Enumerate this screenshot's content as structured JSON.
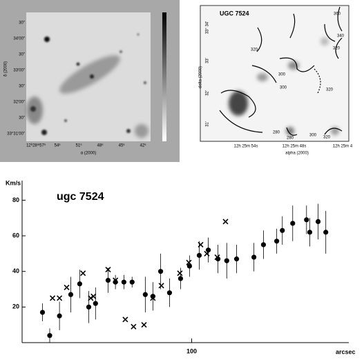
{
  "left_image": {
    "yticks": [
      "30\"",
      "34'00\"",
      "30\"",
      "33'00\"",
      "30\"",
      "32'00\"",
      "30\"",
      "33°31'00\""
    ],
    "ylabel": "δ (2000)",
    "xticks": [
      "12ʰ28ᵐ57ˢ",
      "54ˢ",
      "51ˢ",
      "48ˢ",
      "45ˢ",
      "42ˢ"
    ],
    "xlabel": "α (2000)"
  },
  "right_image": {
    "title": "UGC 7524",
    "contour_labels": [
      "360",
      "340",
      "320",
      "320",
      "300",
      "300",
      "320",
      "280",
      "280",
      "300",
      "320"
    ],
    "yticks": [
      "33° 34'",
      "33'",
      "32'",
      "31'"
    ],
    "ylabel": "delta (2000)",
    "xticks": [
      "12h 25m 54s",
      "12h 25m 48s",
      "12h 25m 4"
    ],
    "xlabel": "alpha (2000)"
  },
  "chart_data": {
    "type": "scatter",
    "title": "ugc 7524",
    "ylabel": "Km/s",
    "xlabel": "arcsec",
    "xscale": "log",
    "xlim": [
      19,
      466
    ],
    "ylim": [
      0,
      91
    ],
    "xticks": [
      100
    ],
    "yticks": [
      20,
      40,
      60,
      80
    ],
    "series": [
      {
        "marker": "dot",
        "color": "#000000",
        "x": [
          23.2,
          24.9,
          27.4,
          30.6,
          33.4,
          36.5,
          39.0,
          44.1,
          47.4,
          51.5,
          55.8,
          63.5,
          68.4,
          73.8,
          80.5,
          89.7,
          97.9,
          107.7,
          117.7,
          129.4,
          141,
          155.3,
          184,
          202,
          230,
          243,
          269,
          308,
          318,
          345,
          372
        ],
        "values": [
          17,
          4,
          15,
          27,
          33,
          20,
          22,
          35,
          34,
          34,
          34,
          27,
          26,
          40,
          28,
          36,
          43,
          49,
          52,
          47,
          46,
          47,
          48,
          55,
          57,
          63,
          67,
          69,
          62,
          68,
          62
        ],
        "errors": [
          5,
          4,
          8,
          10,
          8,
          9,
          9,
          7,
          4,
          4,
          3,
          10,
          8,
          10,
          8,
          6,
          6,
          8,
          7,
          8,
          10,
          8,
          8,
          8,
          7,
          8,
          10,
          8,
          8,
          10,
          12
        ]
      },
      {
        "marker": "cross",
        "color": "#000000",
        "x": [
          25.6,
          27.4,
          29.4,
          34.5,
          37.2,
          38.2,
          44.1,
          47.4,
          52.2,
          56.6,
          62.7,
          68.4,
          74.3,
          89.1,
          97.3,
          109.2,
          116,
          128.5,
          139.3
        ],
        "values": [
          25,
          25,
          31,
          39,
          25,
          26,
          41,
          35,
          13,
          9,
          10,
          25,
          32,
          39,
          45,
          55,
          50,
          48,
          68
        ]
      }
    ]
  }
}
